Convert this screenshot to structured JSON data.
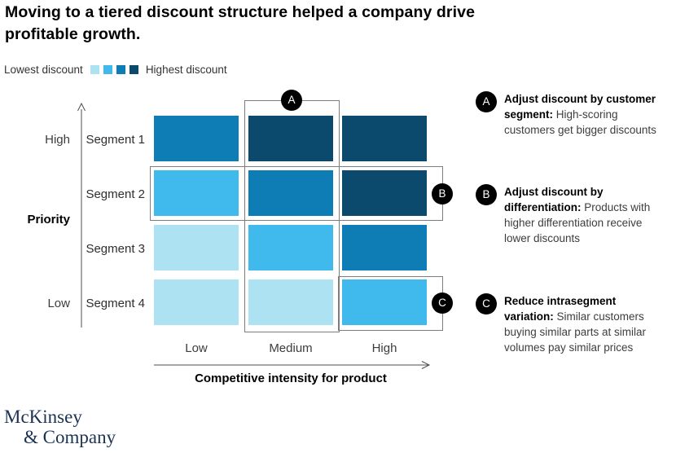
{
  "title": "Moving to a tiered discount structure helped a company drive profitable growth.",
  "legend": {
    "low_label": "Lowest discount",
    "high_label": "Highest discount"
  },
  "chart_data": {
    "type": "heatmap",
    "title": "Moving to a tiered discount structure helped a company drive profitable growth.",
    "x_categories": [
      "Low",
      "Medium",
      "High"
    ],
    "y_categories": [
      "Segment 1",
      "Segment 2",
      "Segment 3",
      "Segment 4"
    ],
    "xlabel": "Competitive intensity for product",
    "ylabel": "Priority",
    "y_axis_top_label": "High",
    "y_axis_bottom_label": "Low",
    "value_encoding": "discount level: 1 = lowest discount, 4 = highest discount",
    "values": [
      [
        3,
        4,
        4
      ],
      [
        2,
        3,
        4
      ],
      [
        1,
        2,
        3
      ],
      [
        1,
        1,
        2
      ]
    ],
    "palette": [
      "#ACE2F1",
      "#40B9EC",
      "#0E7DB6",
      "#0B4A6D"
    ],
    "legend_position": "top-left",
    "grid": false
  },
  "highlights": [
    {
      "id": "A",
      "region": "medium-column"
    },
    {
      "id": "B",
      "region": "segment-2-row"
    },
    {
      "id": "C",
      "region": "segment-4-high-cell"
    }
  ],
  "annotations": [
    {
      "id": "A",
      "title": "Adjust discount by customer segment:",
      "body": "High-scoring customers get bigger discounts"
    },
    {
      "id": "B",
      "title": "Adjust discount by differentiation:",
      "body": "Products with higher differentiation receive lower discounts"
    },
    {
      "id": "C",
      "title": "Reduce intrasegment variation:",
      "body": "Similar customers buying similar parts at similar volumes pay similar prices"
    }
  ],
  "logo": {
    "line1": "McKinsey",
    "line2": "& Company"
  },
  "colors": {
    "badge_bg": "#000000",
    "badge_text": "#ffffff",
    "highlight_border": "#7d7d7d",
    "axis": "#4d4d4d",
    "logo_navy": "#1a3253"
  }
}
